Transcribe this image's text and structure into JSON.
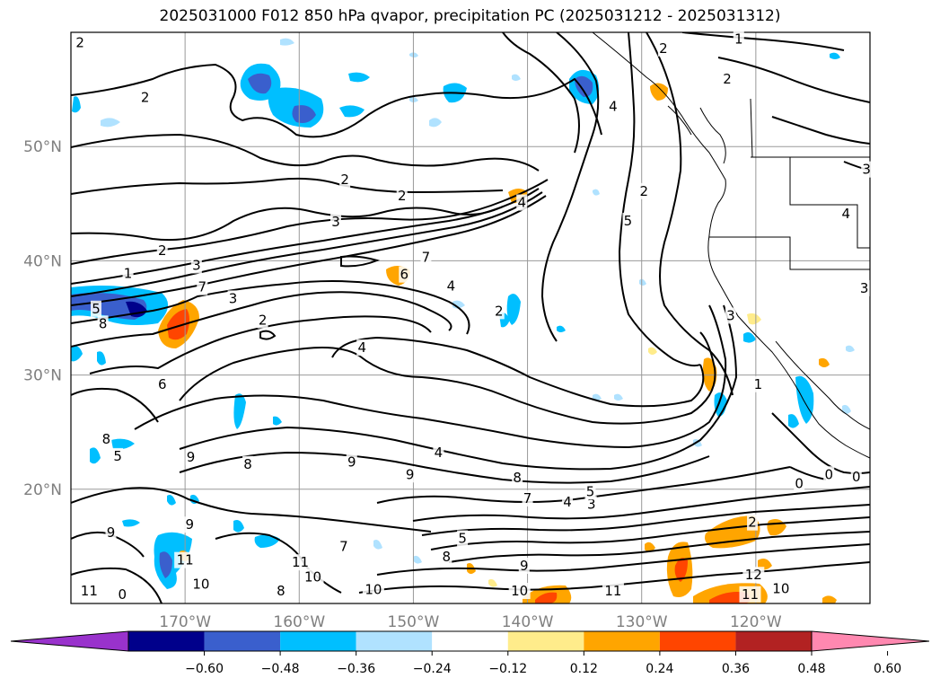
{
  "title": "2025031000 F012 850 hPa qvapor, precipitation PC (2025031212 - 2025031312)",
  "map": {
    "lon_range": [
      -180,
      -110
    ],
    "lat_range": [
      10,
      60
    ],
    "lat_labels": [
      {
        "lat": 50,
        "text": "50°N"
      },
      {
        "lat": 40,
        "text": "40°N"
      },
      {
        "lat": 30,
        "text": "30°N"
      },
      {
        "lat": 20,
        "text": "20°N"
      }
    ],
    "lon_labels": [
      {
        "lon": -170,
        "text": "170°W"
      },
      {
        "lon": -160,
        "text": "160°W"
      },
      {
        "lon": -150,
        "text": "150°W"
      },
      {
        "lon": -140,
        "text": "140°W"
      },
      {
        "lon": -130,
        "text": "130°W"
      },
      {
        "lon": -120,
        "text": "120°W"
      }
    ],
    "gridline_lons": [
      -170,
      -160,
      -150,
      -140,
      -130,
      -120
    ],
    "gridline_lats": [
      20,
      30,
      40,
      50
    ],
    "contour_labels": [
      {
        "lon": -179.2,
        "lat": 59.1,
        "text": "2"
      },
      {
        "lon": -173.5,
        "lat": 54.3,
        "text": "2"
      },
      {
        "lon": -175,
        "lat": 38.9,
        "text": "1"
      },
      {
        "lon": -172,
        "lat": 40.9,
        "text": "2"
      },
      {
        "lon": -156,
        "lat": 47.1,
        "text": "2"
      },
      {
        "lon": -156.8,
        "lat": 43.4,
        "text": "3"
      },
      {
        "lon": -151,
        "lat": 45.7,
        "text": "2"
      },
      {
        "lon": -165.8,
        "lat": 36.7,
        "text": "3"
      },
      {
        "lon": -169,
        "lat": 39.6,
        "text": "3"
      },
      {
        "lon": -168.5,
        "lat": 37.7,
        "text": "7"
      },
      {
        "lon": -177.2,
        "lat": 34.5,
        "text": "8"
      },
      {
        "lon": -177.8,
        "lat": 35.8,
        "text": "5"
      },
      {
        "lon": -148.9,
        "lat": 40.3,
        "text": "7"
      },
      {
        "lon": -150.8,
        "lat": 38.8,
        "text": "6"
      },
      {
        "lon": -146.7,
        "lat": 37.8,
        "text": "4"
      },
      {
        "lon": -142.5,
        "lat": 35.6,
        "text": "2"
      },
      {
        "lon": -163.2,
        "lat": 34.8,
        "text": "2"
      },
      {
        "lon": -154.5,
        "lat": 32.4,
        "text": "4"
      },
      {
        "lon": -172,
        "lat": 29.2,
        "text": "6"
      },
      {
        "lon": -176.9,
        "lat": 24.4,
        "text": "8"
      },
      {
        "lon": -175.9,
        "lat": 22.9,
        "text": "5"
      },
      {
        "lon": -169.5,
        "lat": 22.8,
        "text": "9"
      },
      {
        "lon": -164.5,
        "lat": 22.2,
        "text": "8"
      },
      {
        "lon": -155.4,
        "lat": 22.4,
        "text": "9"
      },
      {
        "lon": -147.8,
        "lat": 23.2,
        "text": "4"
      },
      {
        "lon": -150.3,
        "lat": 21.3,
        "text": "9"
      },
      {
        "lon": -140.9,
        "lat": 21,
        "text": "8"
      },
      {
        "lon": -140,
        "lat": 19.2,
        "text": "7"
      },
      {
        "lon": -136.5,
        "lat": 18.9,
        "text": "4"
      },
      {
        "lon": -134.4,
        "lat": 18.7,
        "text": "3"
      },
      {
        "lon": -134.5,
        "lat": 19.8,
        "text": "5"
      },
      {
        "lon": -145.7,
        "lat": 15.7,
        "text": "5"
      },
      {
        "lon": -147.1,
        "lat": 14.1,
        "text": "8"
      },
      {
        "lon": -140.3,
        "lat": 13.3,
        "text": "9"
      },
      {
        "lon": -156.1,
        "lat": 15,
        "text": "7"
      },
      {
        "lon": -159.9,
        "lat": 13.6,
        "text": "11"
      },
      {
        "lon": -158.8,
        "lat": 12.3,
        "text": "10"
      },
      {
        "lon": -153.5,
        "lat": 11.2,
        "text": "10"
      },
      {
        "lon": -161.6,
        "lat": 11.1,
        "text": "8"
      },
      {
        "lon": -169.6,
        "lat": 16.9,
        "text": "9"
      },
      {
        "lon": -170,
        "lat": 13.8,
        "text": "11"
      },
      {
        "lon": -168.6,
        "lat": 11.7,
        "text": "10"
      },
      {
        "lon": -176.5,
        "lat": 16.2,
        "text": "9"
      },
      {
        "lon": -178.4,
        "lat": 11.1,
        "text": "11"
      },
      {
        "lon": -175.5,
        "lat": 10.8,
        "text": "0"
      },
      {
        "lon": -140.7,
        "lat": 11.1,
        "text": "10"
      },
      {
        "lon": -132.5,
        "lat": 11.1,
        "text": "11"
      },
      {
        "lon": -120.5,
        "lat": 10.8,
        "text": "11"
      },
      {
        "lon": -117.8,
        "lat": 11.3,
        "text": "10"
      },
      {
        "lon": -120.3,
        "lat": 17.1,
        "text": "2"
      },
      {
        "lon": -120.2,
        "lat": 12.5,
        "text": "12"
      },
      {
        "lon": -140.5,
        "lat": 45.1,
        "text": "4"
      },
      {
        "lon": -131.2,
        "lat": 43.5,
        "text": "5"
      },
      {
        "lon": -132.5,
        "lat": 53.5,
        "text": "4"
      },
      {
        "lon": -129.8,
        "lat": 46.1,
        "text": "2"
      },
      {
        "lon": -128.1,
        "lat": 58.6,
        "text": "2"
      },
      {
        "lon": -121.5,
        "lat": 59.4,
        "text": "1"
      },
      {
        "lon": -122.5,
        "lat": 55.9,
        "text": "2"
      },
      {
        "lon": -112.1,
        "lat": 44.1,
        "text": "4"
      },
      {
        "lon": -110.3,
        "lat": 48,
        "text": "3"
      },
      {
        "lon": -110.5,
        "lat": 37.6,
        "text": "3"
      },
      {
        "lon": -122.2,
        "lat": 35.2,
        "text": "3"
      },
      {
        "lon": -119.8,
        "lat": 29.2,
        "text": "1"
      },
      {
        "lon": -113.6,
        "lat": 21.3,
        "text": "0"
      },
      {
        "lon": -111.2,
        "lat": 21.1,
        "text": "0"
      },
      {
        "lon": -116.2,
        "lat": 20.5,
        "text": "0"
      }
    ]
  },
  "colorbar": {
    "colors": [
      "#9932cc",
      "#00008b",
      "#3a5fcd",
      "#00bfff",
      "#b0e2ff",
      "#ffffff",
      "#ffec8b",
      "#ffa500",
      "#ff4500",
      "#b22222",
      "#ff88b0"
    ],
    "tick_labels": [
      "−0.60",
      "−0.48",
      "−0.36",
      "−0.24",
      "−0.12",
      "0.12",
      "0.24",
      "0.36",
      "0.48",
      "0.60"
    ]
  }
}
